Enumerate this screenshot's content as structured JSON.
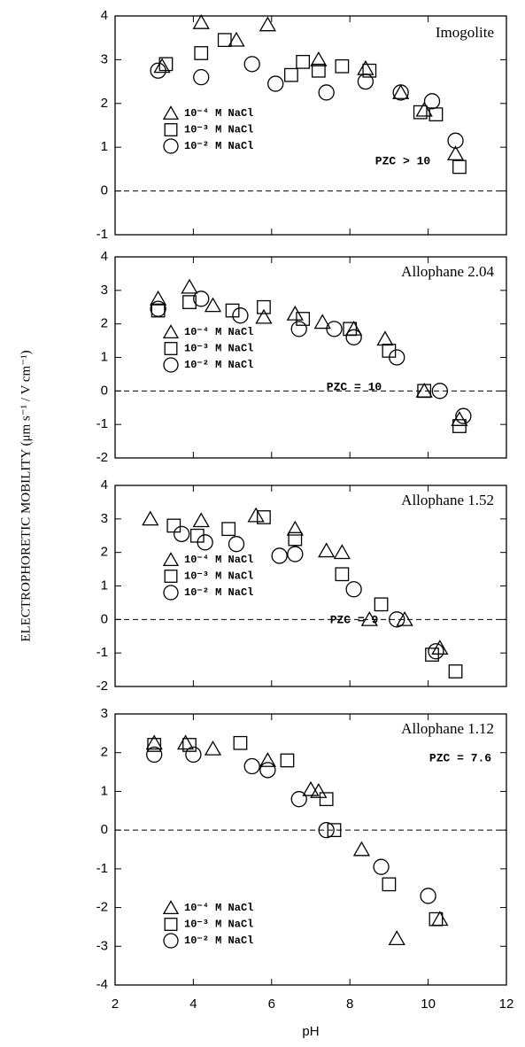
{
  "y_label": "ELECTROPHORETIC MOBILITY (μm s⁻¹ / V cm⁻¹)",
  "chart_data": [
    {
      "type": "scatter",
      "title": "Imogolite",
      "annotation": "PZC > 10",
      "xlim": [
        2,
        12
      ],
      "xticks": [
        2,
        4,
        6,
        8,
        10,
        12
      ],
      "ylim": [
        -1,
        4
      ],
      "yticks": [
        -1,
        0,
        1,
        2,
        3,
        4
      ],
      "zero_line": true,
      "series": [
        {
          "name": "10⁻⁴ M NaCl",
          "marker": "triangle",
          "color": "#000000",
          "x": [
            3.2,
            4.2,
            5.1,
            5.9,
            7.2,
            8.4,
            9.3,
            9.9,
            10.7
          ],
          "values": [
            2.85,
            3.85,
            3.45,
            3.8,
            3.0,
            2.8,
            2.25,
            1.85,
            0.85
          ]
        },
        {
          "name": "10⁻³ M NaCl",
          "marker": "square",
          "color": "#000000",
          "x": [
            3.3,
            4.2,
            4.8,
            6.5,
            6.8,
            7.2,
            7.8,
            8.5,
            9.8,
            10.2,
            10.8
          ],
          "values": [
            2.9,
            3.15,
            3.45,
            2.65,
            2.95,
            2.75,
            2.85,
            2.75,
            1.8,
            1.75,
            0.55
          ]
        },
        {
          "name": "10⁻² M NaCl",
          "marker": "circle",
          "color": "#000000",
          "x": [
            3.1,
            4.2,
            5.5,
            6.1,
            7.4,
            8.4,
            9.3,
            10.1,
            10.7
          ],
          "values": [
            2.75,
            2.6,
            2.9,
            2.45,
            2.25,
            2.5,
            2.25,
            2.05,
            1.15
          ]
        }
      ]
    },
    {
      "type": "scatter",
      "title": "Allophane 2.04",
      "annotation": "PZC = 10",
      "xlim": [
        2,
        12
      ],
      "xticks": [
        2,
        4,
        6,
        8,
        10,
        12
      ],
      "ylim": [
        -2,
        4
      ],
      "yticks": [
        -2,
        -1,
        0,
        1,
        2,
        3,
        4
      ],
      "zero_line": true,
      "series": [
        {
          "name": "10⁻⁴ M NaCl",
          "marker": "triangle",
          "color": "#000000",
          "x": [
            3.1,
            3.9,
            4.5,
            5.8,
            6.6,
            7.3,
            8.1,
            8.9,
            9.9,
            10.8
          ],
          "values": [
            2.75,
            3.1,
            2.55,
            2.2,
            2.3,
            2.05,
            1.85,
            1.55,
            0.0,
            -0.85
          ]
        },
        {
          "name": "10⁻³ M NaCl",
          "marker": "square",
          "color": "#000000",
          "x": [
            3.1,
            3.9,
            5.0,
            5.8,
            6.8,
            8.0,
            9.0,
            9.9,
            10.8
          ],
          "values": [
            2.4,
            2.65,
            2.4,
            2.5,
            2.15,
            1.85,
            1.2,
            0.0,
            -1.05
          ]
        },
        {
          "name": "10⁻² M NaCl",
          "marker": "circle",
          "color": "#000000",
          "x": [
            3.1,
            4.2,
            5.2,
            6.7,
            7.6,
            8.1,
            9.2,
            10.3,
            10.9
          ],
          "values": [
            2.45,
            2.75,
            2.25,
            1.85,
            1.85,
            1.6,
            1.0,
            0.0,
            -0.75
          ]
        }
      ]
    },
    {
      "type": "scatter",
      "title": "Allophane 1.52",
      "annotation": "PZC = 9",
      "xlim": [
        2,
        12
      ],
      "xticks": [
        2,
        4,
        6,
        8,
        10,
        12
      ],
      "ylim": [
        -2,
        4
      ],
      "yticks": [
        -2,
        -1,
        0,
        1,
        2,
        3,
        4
      ],
      "zero_line": true,
      "series": [
        {
          "name": "10⁻⁴ M NaCl",
          "marker": "triangle",
          "color": "#000000",
          "x": [
            2.9,
            4.2,
            5.6,
            6.6,
            7.4,
            7.8,
            8.5,
            9.4,
            10.3
          ],
          "values": [
            3.0,
            2.95,
            3.1,
            2.7,
            2.05,
            2.0,
            0.0,
            0.0,
            -0.85
          ]
        },
        {
          "name": "10⁻³ M NaCl",
          "marker": "square",
          "color": "#000000",
          "x": [
            3.5,
            4.1,
            4.9,
            5.8,
            6.6,
            7.8,
            8.8,
            10.1,
            10.7
          ],
          "values": [
            2.8,
            2.5,
            2.7,
            3.05,
            2.4,
            1.35,
            0.45,
            -1.05,
            -1.55
          ]
        },
        {
          "name": "10⁻² M NaCl",
          "marker": "circle",
          "color": "#000000",
          "x": [
            3.7,
            4.3,
            5.1,
            6.2,
            6.6,
            8.1,
            9.2,
            10.2
          ],
          "values": [
            2.55,
            2.3,
            2.25,
            1.9,
            1.95,
            0.9,
            0.0,
            -0.95
          ]
        }
      ]
    },
    {
      "type": "scatter",
      "title": "Allophane 1.12",
      "annotation": "PZC = 7.6",
      "x_label": "pH",
      "xlim": [
        2,
        12
      ],
      "xticks": [
        2,
        4,
        6,
        8,
        10,
        12
      ],
      "ylim": [
        -4,
        3
      ],
      "yticks": [
        -4,
        -3,
        -2,
        -1,
        0,
        1,
        2,
        3
      ],
      "zero_line": true,
      "series": [
        {
          "name": "10⁻⁴ M NaCl",
          "marker": "triangle",
          "color": "#000000",
          "x": [
            3.0,
            3.8,
            4.5,
            5.9,
            7.0,
            7.2,
            8.3,
            9.2,
            10.3
          ],
          "values": [
            2.25,
            2.25,
            2.1,
            1.8,
            1.05,
            1.0,
            -0.5,
            -2.8,
            -2.3
          ]
        },
        {
          "name": "10⁻³ M NaCl",
          "marker": "square",
          "color": "#000000",
          "x": [
            3.0,
            3.9,
            5.2,
            6.4,
            7.4,
            7.6,
            9.0,
            10.2
          ],
          "values": [
            2.2,
            2.2,
            2.25,
            1.8,
            0.8,
            0.0,
            -1.4,
            -2.3
          ]
        },
        {
          "name": "10⁻² M NaCl",
          "marker": "circle",
          "color": "#000000",
          "x": [
            3.0,
            4.0,
            5.5,
            5.9,
            6.7,
            7.4,
            8.8,
            10.0
          ],
          "values": [
            1.95,
            1.95,
            1.65,
            1.55,
            0.8,
            0.0,
            -0.95,
            -1.7
          ]
        }
      ]
    }
  ]
}
